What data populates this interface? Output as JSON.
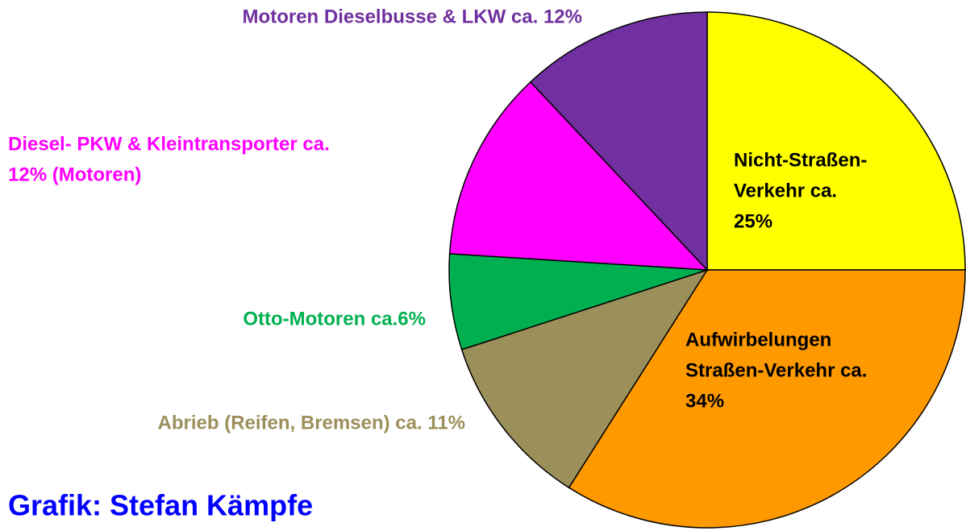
{
  "chart_data": {
    "type": "pie",
    "categories": [
      [
        "Nicht-Straßen-",
        "Verkehr ca.",
        "25%"
      ],
      [
        "Aufwirbelungen",
        "Straßen-Verkehr ca.",
        "34%"
      ],
      [
        "Abrieb (Reifen, Bremsen) ca. 11%"
      ],
      [
        "Otto-Motoren ca.6%"
      ],
      [
        "Diesel- PKW & Kleintransporter ca.",
        "12% (Motoren)"
      ],
      [
        "Motoren Dieselbusse & LKW ca. 12%"
      ]
    ],
    "values": [
      25,
      34,
      11,
      6,
      12,
      12
    ],
    "colors": [
      "#ffff00",
      "#ff9900",
      "#9b8f5a",
      "#00b050",
      "#ff00ff",
      "#7030a0"
    ],
    "credit": "Grafik: Stefan Kämpfe"
  }
}
